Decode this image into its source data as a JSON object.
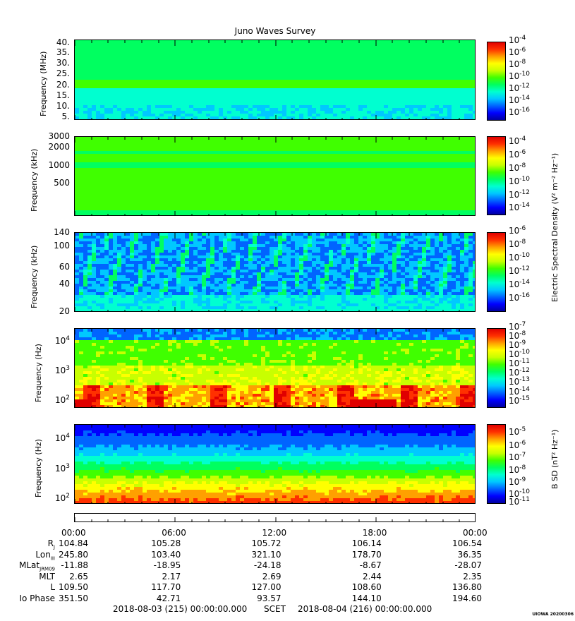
{
  "title": "Juno Waves Survey",
  "colors": {
    "ramp": [
      "#0000a0",
      "#0000ff",
      "#0064ff",
      "#00c8ff",
      "#00ffd0",
      "#00ff60",
      "#40ff00",
      "#c8ff00",
      "#ffff00",
      "#ffa000",
      "#ff3000",
      "#e00000"
    ]
  },
  "panels": [
    {
      "ylabel": "Frequency (MHz)",
      "yticks": [
        "40.",
        "35.",
        "30.",
        "25.",
        "20.",
        "15.",
        "10.",
        "5."
      ],
      "cbar_ticks": [
        {
          "base": "10",
          "exp": "-4"
        },
        {
          "base": "10",
          "exp": "-6"
        },
        {
          "base": "10",
          "exp": "-8"
        },
        {
          "base": "10",
          "exp": "-10"
        },
        {
          "base": "10",
          "exp": "-12"
        },
        {
          "base": "10",
          "exp": "-14"
        },
        {
          "base": "10",
          "exp": "-16"
        }
      ]
    },
    {
      "ylabel": "Frequency (kHz)",
      "yticks": [
        "3000",
        "2000",
        "1000",
        "500"
      ],
      "cbar_ticks": [
        {
          "base": "10",
          "exp": "-4"
        },
        {
          "base": "10",
          "exp": "-6"
        },
        {
          "base": "10",
          "exp": "-8"
        },
        {
          "base": "10",
          "exp": "-10"
        },
        {
          "base": "10",
          "exp": "-12"
        },
        {
          "base": "10",
          "exp": "-14"
        }
      ]
    },
    {
      "ylabel": "Frequency (kHz)",
      "yticks": [
        "140",
        "100",
        "60",
        "40",
        "20"
      ],
      "cbar_ticks": [
        {
          "base": "10",
          "exp": "-6"
        },
        {
          "base": "10",
          "exp": "-8"
        },
        {
          "base": "10",
          "exp": "-10"
        },
        {
          "base": "10",
          "exp": "-12"
        },
        {
          "base": "10",
          "exp": "-14"
        },
        {
          "base": "10",
          "exp": "-16"
        }
      ]
    },
    {
      "ylabel": "Frequency (Hz)",
      "yticks": [
        {
          "base": "10",
          "exp": "4"
        },
        {
          "base": "10",
          "exp": "3"
        },
        {
          "base": "10",
          "exp": "2"
        }
      ],
      "cbar_ticks": [
        {
          "base": "10",
          "exp": "-7"
        },
        {
          "base": "10",
          "exp": "-8"
        },
        {
          "base": "10",
          "exp": "-9"
        },
        {
          "base": "10",
          "exp": "-10"
        },
        {
          "base": "10",
          "exp": "-11"
        },
        {
          "base": "10",
          "exp": "-12"
        },
        {
          "base": "10",
          "exp": "-13"
        },
        {
          "base": "10",
          "exp": "-14"
        },
        {
          "base": "10",
          "exp": "-15"
        }
      ]
    },
    {
      "ylabel": "Frequency (Hz)",
      "yticks": [
        {
          "base": "10",
          "exp": "4"
        },
        {
          "base": "10",
          "exp": "3"
        },
        {
          "base": "10",
          "exp": "2"
        }
      ],
      "cbar_ticks": [
        {
          "base": "10",
          "exp": "-5"
        },
        {
          "base": "10",
          "exp": "-6"
        },
        {
          "base": "10",
          "exp": "-7"
        },
        {
          "base": "10",
          "exp": "-8"
        },
        {
          "base": "10",
          "exp": "-9"
        },
        {
          "base": "10",
          "exp": "-10"
        },
        {
          "base": "10",
          "exp": "-11"
        }
      ]
    }
  ],
  "cbar_label_e": "Electric Spectral Density (V² m⁻² Hz⁻¹)",
  "cbar_label_b": "B SD (nT² Hz⁻¹)",
  "chart_data": {
    "type": "heatmap",
    "title": "Juno Waves Survey",
    "x_axis": "SCET",
    "x_range": [
      "2018-08-03 00:00",
      "2018-08-04 00:00"
    ],
    "x_tick_labels": [
      "00:00",
      "06:00",
      "12:00",
      "18:00",
      "00:00"
    ],
    "panels": [
      {
        "ylabel": "Frequency (MHz)",
        "ylim": [
          3,
          41
        ],
        "yscale": "linear",
        "clim": [
          "1e-16",
          "1e-4"
        ],
        "colorbar": "Electric Spectral Density"
      },
      {
        "ylabel": "Frequency (kHz)",
        "ylim": [
          140,
          3000
        ],
        "yscale": "log",
        "clim": [
          "1e-15",
          "1e-4"
        ],
        "colorbar": "Electric Spectral Density"
      },
      {
        "ylabel": "Frequency (kHz)",
        "ylim": [
          20,
          140
        ],
        "yscale": "log",
        "clim": [
          "1e-16",
          "1e-6"
        ],
        "colorbar": "Electric Spectral Density"
      },
      {
        "ylabel": "Frequency (Hz)",
        "ylim": [
          50,
          20000
        ],
        "yscale": "log",
        "clim": [
          "1e-15",
          "1e-7"
        ],
        "colorbar": "Electric Spectral Density"
      },
      {
        "ylabel": "Frequency (Hz)",
        "ylim": [
          50,
          20000
        ],
        "yscale": "log",
        "clim": [
          "1e-11",
          "1e-5"
        ],
        "colorbar": "B SD"
      }
    ]
  },
  "ephemeris": {
    "times": [
      "00:00",
      "06:00",
      "12:00",
      "18:00",
      "00:00"
    ],
    "rows": [
      {
        "label": "R",
        "sub": "J",
        "values": [
          "104.84",
          "105.28",
          "105.72",
          "106.14",
          "106.54"
        ]
      },
      {
        "label": "Lon",
        "sub": "III",
        "values": [
          "245.80",
          "103.40",
          "321.10",
          "178.70",
          "36.35"
        ]
      },
      {
        "label": "MLat",
        "sub": "JRM09",
        "values": [
          "-11.88",
          "-18.95",
          "-24.18",
          "-8.67",
          "-28.07"
        ]
      },
      {
        "label": "MLT",
        "sub": "",
        "values": [
          "2.65",
          "2.17",
          "2.69",
          "2.44",
          "2.35"
        ]
      },
      {
        "label": "L",
        "sub": "",
        "values": [
          "109.50",
          "117.70",
          "127.00",
          "108.60",
          "136.80"
        ]
      },
      {
        "label": "Io Phase",
        "sub": "",
        "values": [
          "351.50",
          "42.71",
          "93.57",
          "144.10",
          "194.60"
        ]
      }
    ]
  },
  "footer": {
    "start": "2018-08-03 (215) 00:00:00.000",
    "scet": "SCET",
    "end": "2018-08-04 (216) 00:00:00.000"
  },
  "stamp": "UIOWA 20200306"
}
